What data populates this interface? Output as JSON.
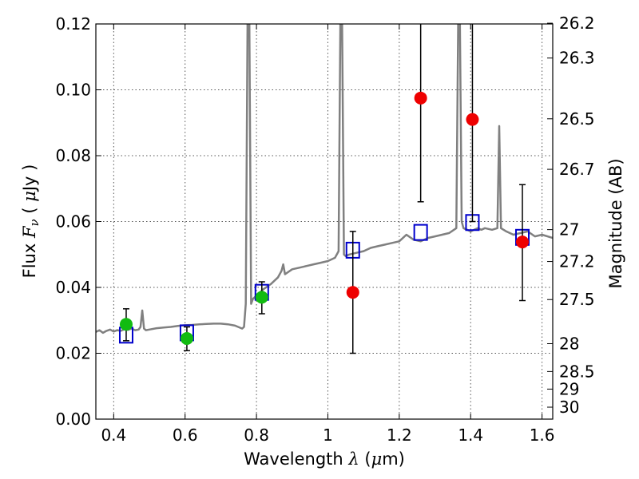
{
  "chart_data": {
    "type": "scatter",
    "title": "",
    "xlabel": "Wavelength  λ (μm)",
    "xlabel_parts": [
      "Wavelength  ",
      "λ",
      " (",
      "μ",
      "m)"
    ],
    "ylabel": "Flux  Fν  ( μJy )",
    "ylabel_parts": [
      "Flux  ",
      "F",
      "ν",
      "  ( ",
      "μ",
      "Jy )"
    ],
    "y2label": "Magnitude (AB)",
    "xlim": [
      0.35,
      1.63
    ],
    "ylim": [
      0.0,
      0.12
    ],
    "grid": true,
    "x_ticks": [
      0.4,
      0.6,
      0.8,
      1.0,
      1.2,
      1.4,
      1.6
    ],
    "x_tick_labels": [
      "0.4",
      "0.6",
      "0.8",
      "1",
      "1.2",
      "1.4",
      "1.6"
    ],
    "y_ticks": [
      0.0,
      0.02,
      0.04,
      0.06,
      0.08,
      0.1,
      0.12
    ],
    "y_tick_labels": [
      "0.00",
      "0.02",
      "0.04",
      "0.06",
      "0.08",
      "0.10",
      "0.12"
    ],
    "mag_ticks": [
      26.2,
      26.3,
      26.5,
      26.7,
      27,
      27.2,
      27.5,
      28,
      28.5,
      29,
      30
    ],
    "mag_tick_labels": [
      "26.2",
      "26.3",
      "26.5",
      "26.7",
      "27",
      "27.2",
      "27.5",
      "28",
      "28.5",
      "29",
      "30"
    ],
    "colors": {
      "spectrum": "#808080",
      "model_box": "#0000cc",
      "detection": "#11bb11",
      "nondetection": "#ee0000",
      "errorbar": "#000000",
      "grid": "#555555"
    },
    "series": [
      {
        "name": "Model spectrum",
        "kind": "line",
        "x": [
          0.35,
          0.36,
          0.37,
          0.38,
          0.39,
          0.4,
          0.41,
          0.42,
          0.43,
          0.44,
          0.45,
          0.46,
          0.47,
          0.475,
          0.48,
          0.485,
          0.49,
          0.5,
          0.52,
          0.54,
          0.56,
          0.58,
          0.6,
          0.62,
          0.64,
          0.66,
          0.68,
          0.7,
          0.72,
          0.74,
          0.76,
          0.765,
          0.77,
          0.775,
          0.78,
          0.785,
          0.79,
          0.8,
          0.82,
          0.84,
          0.86,
          0.87,
          0.875,
          0.88,
          0.9,
          0.92,
          0.94,
          0.96,
          0.98,
          1.0,
          1.02,
          1.03,
          1.035,
          1.04,
          1.045,
          1.05,
          1.06,
          1.08,
          1.1,
          1.12,
          1.14,
          1.16,
          1.18,
          1.2,
          1.22,
          1.24,
          1.26,
          1.28,
          1.3,
          1.32,
          1.34,
          1.36,
          1.365,
          1.37,
          1.375,
          1.38,
          1.39,
          1.4,
          1.41,
          1.42,
          1.43,
          1.44,
          1.46,
          1.475,
          1.48,
          1.485,
          1.5,
          1.52,
          1.54,
          1.56,
          1.58,
          1.6,
          1.63
        ],
        "y": [
          0.0265,
          0.027,
          0.0262,
          0.0268,
          0.0272,
          0.0266,
          0.027,
          0.0268,
          0.0273,
          0.0271,
          0.0275,
          0.027,
          0.0272,
          0.028,
          0.033,
          0.0275,
          0.027,
          0.0272,
          0.0276,
          0.0278,
          0.028,
          0.0283,
          0.0285,
          0.0286,
          0.0288,
          0.0289,
          0.029,
          0.029,
          0.0288,
          0.0284,
          0.0275,
          0.028,
          0.035,
          0.12,
          0.12,
          0.035,
          0.0365,
          0.0375,
          0.0395,
          0.041,
          0.043,
          0.045,
          0.047,
          0.044,
          0.0455,
          0.046,
          0.0465,
          0.047,
          0.0475,
          0.048,
          0.049,
          0.051,
          0.12,
          0.12,
          0.05,
          0.0495,
          0.05,
          0.0505,
          0.051,
          0.052,
          0.0525,
          0.053,
          0.0535,
          0.054,
          0.056,
          0.0545,
          0.054,
          0.055,
          0.0555,
          0.056,
          0.0565,
          0.058,
          0.12,
          0.12,
          0.06,
          0.058,
          0.0575,
          0.057,
          0.0575,
          0.058,
          0.0575,
          0.058,
          0.0575,
          0.058,
          0.089,
          0.058,
          0.057,
          0.056,
          0.0565,
          0.057,
          0.0555,
          0.056,
          0.055
        ]
      },
      {
        "name": "Model photometry",
        "kind": "box",
        "x": [
          0.435,
          0.605,
          0.815,
          1.07,
          1.26,
          1.405,
          1.545
        ],
        "y": [
          0.0255,
          0.0262,
          0.0385,
          0.0513,
          0.0567,
          0.0597,
          0.0552
        ]
      },
      {
        "name": "Detections",
        "kind": "point",
        "x": [
          0.435,
          0.605,
          0.815
        ],
        "y": [
          0.0288,
          0.0245,
          0.037
        ],
        "err_low": [
          0.0238,
          0.0208,
          0.032
        ],
        "err_high": [
          0.0335,
          0.028,
          0.0417
        ]
      },
      {
        "name": "Non-detections",
        "kind": "point",
        "x": [
          1.07,
          1.26,
          1.405,
          1.545
        ],
        "y": [
          0.0385,
          0.0975,
          0.091,
          0.0538
        ],
        "err_low": [
          0.02,
          0.066,
          0.06,
          0.036
        ],
        "err_high": [
          0.057,
          0.12,
          0.12,
          0.0712
        ]
      }
    ]
  }
}
